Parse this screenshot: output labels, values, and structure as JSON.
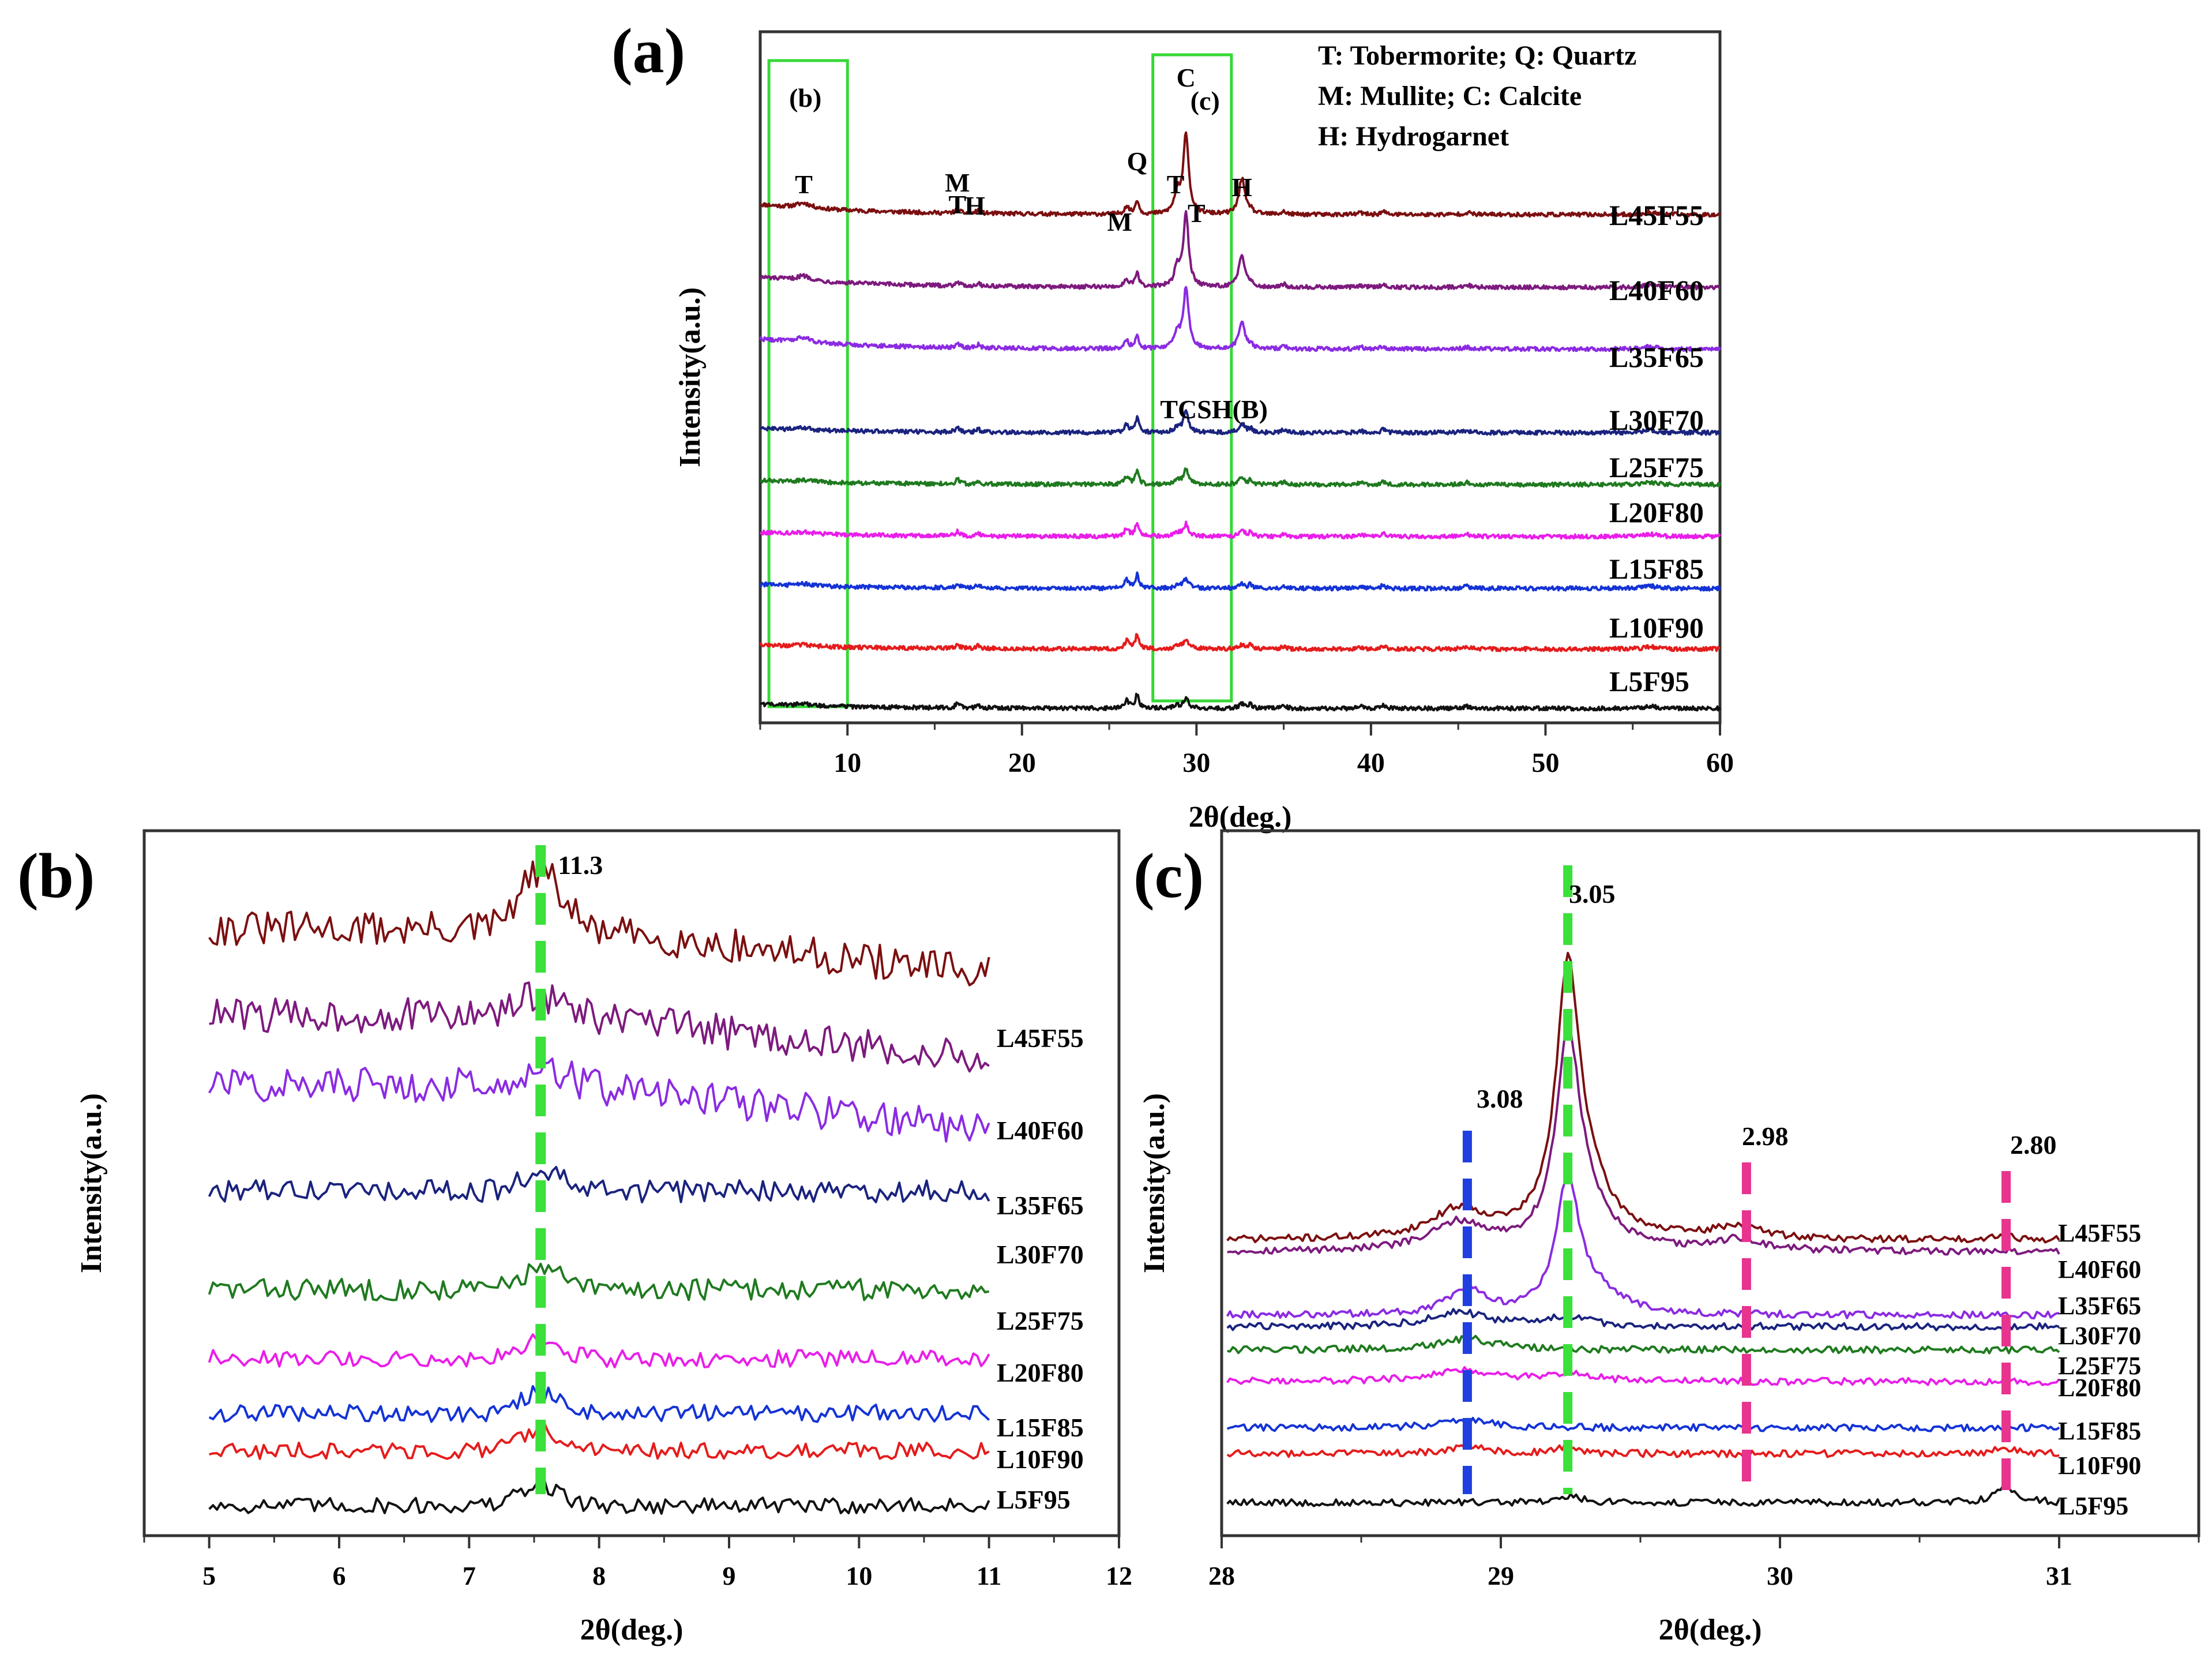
{
  "chart_data": [
    {
      "panel": "(a)",
      "type": "line",
      "xlabel": "2θ(deg.)",
      "ylabel": "Intensity(a.u.)",
      "xlim": [
        5,
        60
      ],
      "xticks": [
        10,
        20,
        30,
        40,
        50,
        60
      ],
      "legend": [
        "T: Tobermorite; Q: Quartz",
        "M: Mullite; C: Calcite",
        "H: Hydrogarnet"
      ],
      "boxes": [
        {
          "label": "(b)",
          "x_from": 5.5,
          "x_to": 10
        },
        {
          "label": "(c)",
          "x_from": 27.5,
          "x_to": 32
        }
      ],
      "peak_labels": [
        {
          "text": "T",
          "x": 7.5
        },
        {
          "text": "M",
          "x": 16.3
        },
        {
          "text": "T",
          "x": 16.3
        },
        {
          "text": "H",
          "x": 17.3
        },
        {
          "text": "M",
          "x": 25.6
        },
        {
          "text": "Q",
          "x": 26.6
        },
        {
          "text": "C",
          "x": 29.4
        },
        {
          "text": "T",
          "x": 28.8
        },
        {
          "text": "T",
          "x": 30.0
        },
        {
          "text": "H",
          "x": 32.6
        },
        {
          "text": "TCSH(B)",
          "x": 31.0
        }
      ],
      "series": [
        {
          "name": "L45F55",
          "color": "#7b0f10"
        },
        {
          "name": "L40F60",
          "color": "#7d1a7e"
        },
        {
          "name": "L35F65",
          "color": "#8b2be2"
        },
        {
          "name": "L30F70",
          "color": "#1a237e"
        },
        {
          "name": "L25F75",
          "color": "#1f7a1f"
        },
        {
          "name": "L20F80",
          "color": "#e91ee9"
        },
        {
          "name": "L15F85",
          "color": "#1433d6"
        },
        {
          "name": "L10F90",
          "color": "#e51c1c"
        },
        {
          "name": "L5F95",
          "color": "#111111"
        }
      ]
    },
    {
      "panel": "(b)",
      "type": "line",
      "xlabel": "2θ(deg.)",
      "ylabel": "Intensity(a.u.)",
      "xlim": [
        4.5,
        12
      ],
      "xticks": [
        5,
        6,
        7,
        8,
        9,
        10,
        11,
        12
      ],
      "marker_lines": [
        {
          "x": 7.55,
          "label": "11.3",
          "color": "#3be03b"
        }
      ],
      "series": [
        {
          "name": "L45F55",
          "color": "#7b0f10"
        },
        {
          "name": "L40F60",
          "color": "#7d1a7e"
        },
        {
          "name": "L35F65",
          "color": "#8b2be2"
        },
        {
          "name": "L30F70",
          "color": "#1a237e"
        },
        {
          "name": "L25F75",
          "color": "#1f7a1f"
        },
        {
          "name": "L20F80",
          "color": "#e91ee9"
        },
        {
          "name": "L15F85",
          "color": "#1433d6"
        },
        {
          "name": "L10F90",
          "color": "#e51c1c"
        },
        {
          "name": "L5F95",
          "color": "#111111"
        }
      ]
    },
    {
      "panel": "(c)",
      "type": "line",
      "xlabel": "2θ(deg.)",
      "ylabel": "Intensity(a.u.)",
      "xlim": [
        28,
        31.5
      ],
      "xticks": [
        28,
        29,
        30,
        31
      ],
      "marker_lines": [
        {
          "x": 28.88,
          "label": "3.08",
          "color": "#1f3fe0"
        },
        {
          "x": 29.24,
          "label": "3.05",
          "color": "#3be03b"
        },
        {
          "x": 29.88,
          "label": "2.98",
          "color": "#e8338f"
        },
        {
          "x": 30.81,
          "label": "2.80",
          "color": "#e8338f"
        }
      ],
      "series": [
        {
          "name": "L45F55",
          "color": "#7b0f10"
        },
        {
          "name": "L40F60",
          "color": "#7d1a7e"
        },
        {
          "name": "L35F65",
          "color": "#8b2be2"
        },
        {
          "name": "L30F70",
          "color": "#1a237e"
        },
        {
          "name": "L25F75",
          "color": "#1f7a1f"
        },
        {
          "name": "L20F80",
          "color": "#e91ee9"
        },
        {
          "name": "L15F85",
          "color": "#1433d6"
        },
        {
          "name": "L10F90",
          "color": "#e51c1c"
        },
        {
          "name": "L5F95",
          "color": "#111111"
        }
      ]
    }
  ]
}
